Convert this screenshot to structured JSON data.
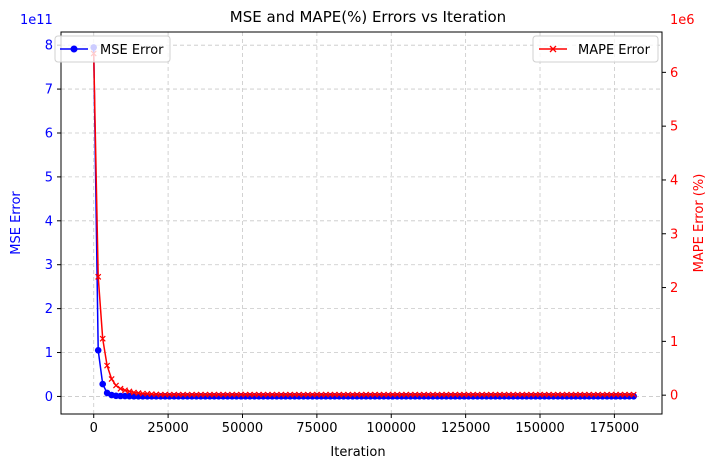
{
  "chart_data": {
    "type": "line",
    "title": "MSE and MAPE(%) Errors vs Iteration",
    "xlabel": "Iteration",
    "ylabel_left": "MSE Error",
    "ylabel_right": "MAPE Error (%)",
    "left_exponent": "1e11",
    "right_exponent": "1e6",
    "xlim": [
      -11000,
      191000
    ],
    "ylim_left": [
      -0.4,
      8.3
    ],
    "ylim_right": [
      -0.35,
      6.75
    ],
    "xticks": [
      0,
      25000,
      50000,
      75000,
      100000,
      125000,
      150000,
      175000
    ],
    "yticks_left": [
      0,
      1,
      2,
      3,
      4,
      5,
      6,
      7,
      8
    ],
    "yticks_right": [
      0,
      1,
      2,
      3,
      4,
      5,
      6
    ],
    "grid": true,
    "series": [
      {
        "name": "MSE Error",
        "axis": "left",
        "color": "#0000ff",
        "marker": "circle",
        "x_start": 0,
        "x_step": 1500,
        "x_end": 182000,
        "head": [
          7.95,
          1.05,
          0.28,
          0.08,
          0.03,
          0.015,
          0.01,
          0.007,
          0.005
        ],
        "tail_value": 0.002
      },
      {
        "name": "MAPE Error",
        "axis": "right",
        "color": "#ff0000",
        "marker": "x",
        "x_start": 0,
        "x_step": 1500,
        "x_end": 182000,
        "head": [
          6.35,
          2.2,
          1.05,
          0.55,
          0.3,
          0.18,
          0.12,
          0.09,
          0.07,
          0.05,
          0.04,
          0.03,
          0.025,
          0.02,
          0.015
        ],
        "tail_value": 0.01
      }
    ],
    "legend_left": {
      "label": "MSE Error",
      "placement": "upper-left"
    },
    "legend_right": {
      "label": "MAPE Error",
      "placement": "upper-right"
    }
  }
}
